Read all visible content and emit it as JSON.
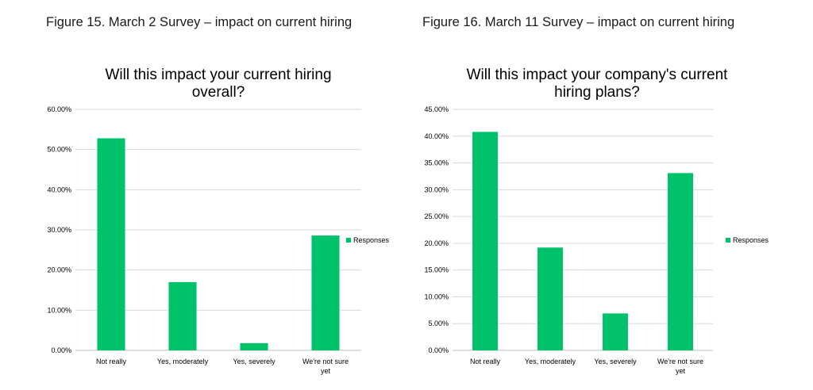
{
  "figures": [
    {
      "caption": "Figure 15. March 2 Survey – impact on current hiring",
      "chart_data": {
        "type": "bar",
        "title_lines": [
          "Will this impact your current hiring",
          "overall?"
        ],
        "categories": [
          [
            "Not really"
          ],
          [
            "Yes, moderately"
          ],
          [
            "Yes, severely"
          ],
          [
            "We're not sure",
            "yet"
          ]
        ],
        "series": [
          {
            "name": "Responses",
            "values": [
              52.8,
              17.0,
              1.8,
              28.6
            ],
            "color": "#00c26a"
          }
        ],
        "ylim": [
          0,
          60
        ],
        "yticks": [
          0,
          10,
          20,
          30,
          40,
          50,
          60
        ],
        "ytick_labels": [
          "0.00%",
          "10.00%",
          "20.00%",
          "30.00%",
          "40.00%",
          "50.00%",
          "60.00%"
        ],
        "grid": true,
        "legend": "right"
      }
    },
    {
      "caption": "Figure 16. March 11 Survey – impact on current hiring",
      "chart_data": {
        "type": "bar",
        "title_lines": [
          "Will this impact your company's current",
          "hiring plans?"
        ],
        "categories": [
          [
            "Not really"
          ],
          [
            "Yes, moderately"
          ],
          [
            "Yes, severely"
          ],
          [
            "We're not sure",
            "yet"
          ]
        ],
        "series": [
          {
            "name": "Responses",
            "values": [
              40.8,
              19.2,
              6.9,
              33.1
            ],
            "color": "#00c26a"
          }
        ],
        "ylim": [
          0,
          45
        ],
        "yticks": [
          0,
          5,
          10,
          15,
          20,
          25,
          30,
          35,
          40,
          45
        ],
        "ytick_labels": [
          "0.00%",
          "5.00%",
          "10.00%",
          "15.00%",
          "20.00%",
          "25.00%",
          "30.00%",
          "35.00%",
          "40.00%",
          "45.00%"
        ],
        "grid": true,
        "legend": "right"
      }
    }
  ]
}
